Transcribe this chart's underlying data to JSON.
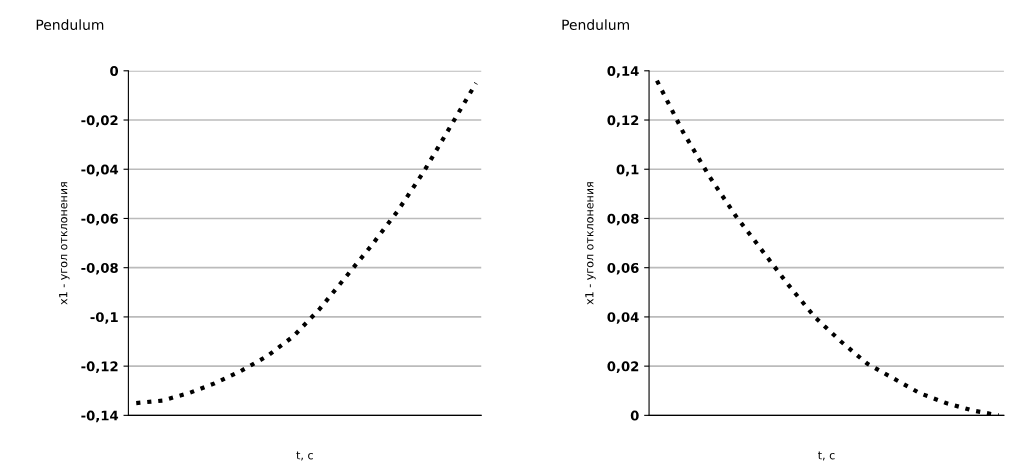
{
  "chart_data": [
    {
      "type": "line",
      "title": "Pendulum",
      "xlabel": "t, c",
      "ylabel": "x1 - угол отклонения",
      "categories": [
        null,
        null,
        null,
        null,
        null,
        null,
        null,
        null,
        null,
        null,
        null,
        null,
        null,
        null
      ],
      "series": [
        {
          "color": "#000000",
          "values": [
            -0.135,
            -0.134,
            -0.131,
            -0.127,
            -0.122,
            -0.116,
            -0.108,
            -0.097,
            -0.084,
            -0.071,
            -0.057,
            -0.041,
            -0.023,
            -0.005
          ]
        }
      ],
      "ylim": [
        -0.14,
        0
      ],
      "yticks": [
        {
          "value": -0.14,
          "label": "-0,14"
        },
        {
          "value": -0.12,
          "label": "-0,12"
        },
        {
          "value": -0.1,
          "label": "-0,1"
        },
        {
          "value": -0.08,
          "label": "-0,08"
        },
        {
          "value": -0.06,
          "label": "-0,06"
        },
        {
          "value": -0.04,
          "label": "-0,04"
        },
        {
          "value": -0.02,
          "label": "-0,02"
        },
        {
          "value": 0,
          "label": "0"
        }
      ],
      "grid": "y",
      "line_style": "dotted"
    },
    {
      "type": "line",
      "title": "Pendulum",
      "xlabel": "t, c",
      "ylabel": "x1 - угол отклонения",
      "categories": [
        null,
        null,
        null,
        null,
        null,
        null,
        null,
        null,
        null,
        null,
        null,
        null,
        null,
        null
      ],
      "series": [
        {
          "color": "#000000",
          "values": [
            0.136,
            0.115,
            0.097,
            0.081,
            0.067,
            0.053,
            0.04,
            0.03,
            0.021,
            0.015,
            0.009,
            0.005,
            0.002,
            0
          ]
        }
      ],
      "ylim": [
        0,
        0.14
      ],
      "yticks": [
        {
          "value": 0,
          "label": "0"
        },
        {
          "value": 0.02,
          "label": "0,02"
        },
        {
          "value": 0.04,
          "label": "0,04"
        },
        {
          "value": 0.06,
          "label": "0,06"
        },
        {
          "value": 0.08,
          "label": "0,08"
        },
        {
          "value": 0.1,
          "label": "0,1"
        },
        {
          "value": 0.12,
          "label": "0,12"
        },
        {
          "value": 0.14,
          "label": "0,14"
        }
      ],
      "grid": "y",
      "line_style": "dotted"
    }
  ]
}
